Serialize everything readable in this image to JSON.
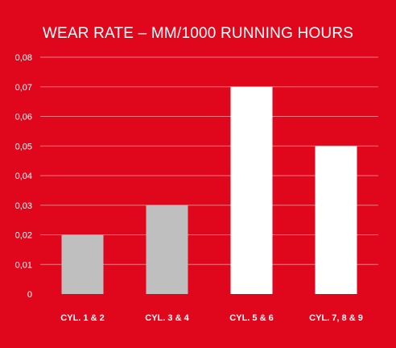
{
  "chart_data": {
    "type": "bar",
    "title": "WEAR RATE – MM/1000 RUNNING HOURS",
    "xlabel": "",
    "ylabel": "",
    "categories": [
      "CYL. 1 & 2",
      "CYL. 3 & 4",
      "CYL. 5 & 6",
      "CYL. 7, 8 & 9"
    ],
    "values": [
      0.02,
      0.03,
      0.07,
      0.05
    ],
    "bar_colors": [
      "#bfbfbf",
      "#bfbfbf",
      "#ffffff",
      "#ffffff"
    ],
    "ylim": [
      0,
      0.08
    ],
    "yticks": [
      0,
      0.01,
      0.02,
      0.03,
      0.04,
      0.05,
      0.06,
      0.07,
      0.08
    ],
    "ytick_labels": [
      "0",
      "0,01",
      "0,02",
      "0,03",
      "0,04",
      "0,05",
      "0,06",
      "0,07",
      "0,08"
    ],
    "grid": true,
    "legend": "none"
  },
  "colors": {
    "background": "#e0061b",
    "gridline": "#f07a84",
    "text": "#ffffff"
  }
}
